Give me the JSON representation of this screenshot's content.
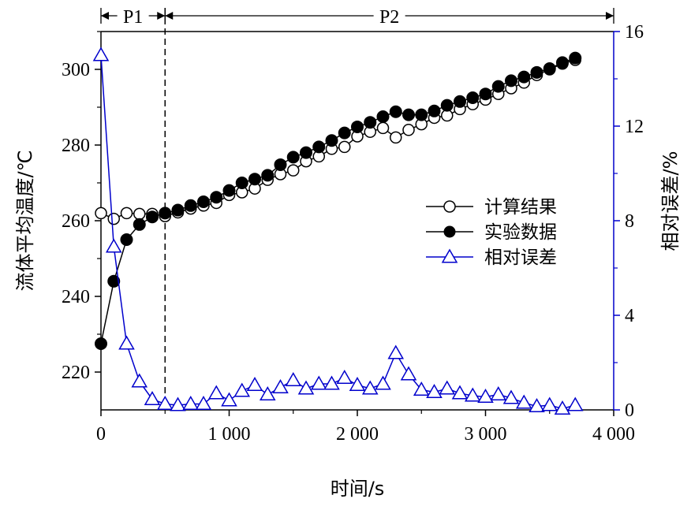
{
  "chart_data": {
    "type": "line",
    "xlabel": "时间/s",
    "ylabel_left": "流体平均温度/℃",
    "ylabel_right": "相对误差/%",
    "xlim": [
      0,
      4000
    ],
    "ylim_left": [
      210,
      310
    ],
    "ylim_right": [
      0,
      16
    ],
    "x_ticks": [
      0,
      1000,
      2000,
      3000,
      4000
    ],
    "x_tick_labels": [
      "0",
      "1 000",
      "2 000",
      "3 000",
      "4 000"
    ],
    "y_left_ticks": [
      220,
      240,
      260,
      280,
      300
    ],
    "y_left_tick_labels": [
      "220",
      "240",
      "260",
      "280",
      "300"
    ],
    "y_right_ticks": [
      0,
      4,
      8,
      12,
      16
    ],
    "y_right_tick_labels": [
      "0",
      "4",
      "8",
      "12",
      "16"
    ],
    "right_axis_color": "#0000cc",
    "legend_position": "right-center",
    "phases": [
      {
        "label": "P1",
        "x_start": 0,
        "x_end": 500
      },
      {
        "label": "P2",
        "x_start": 500,
        "x_end": 4000
      }
    ],
    "divider_x": 500,
    "series": [
      {
        "name": "计算结果",
        "axis": "left",
        "marker": "open-circle",
        "color": "#000000",
        "x": [
          0,
          100,
          200,
          300,
          400,
          500,
          600,
          700,
          800,
          900,
          1000,
          1100,
          1200,
          1300,
          1400,
          1500,
          1600,
          1700,
          1800,
          1900,
          2000,
          2100,
          2200,
          2300,
          2400,
          2500,
          2600,
          2700,
          2800,
          2900,
          3000,
          3100,
          3200,
          3300,
          3400,
          3500,
          3600,
          3700
        ],
        "values": [
          262.0,
          260.5,
          262.0,
          261.8,
          261.8,
          261.2,
          262.2,
          263.2,
          264.0,
          264.7,
          266.8,
          267.5,
          268.5,
          270.8,
          272.3,
          273.3,
          275.7,
          277.0,
          279.0,
          279.5,
          282.3,
          283.5,
          284.5,
          282.0,
          284.0,
          285.5,
          287.2,
          287.8,
          289.5,
          290.8,
          292.0,
          293.5,
          295.0,
          296.5,
          298.5,
          300.0,
          301.5,
          302.5
        ]
      },
      {
        "name": "实验数据",
        "axis": "left",
        "marker": "filled-circle",
        "color": "#000000",
        "x": [
          0,
          100,
          200,
          300,
          400,
          500,
          600,
          700,
          800,
          900,
          1000,
          1100,
          1200,
          1300,
          1400,
          1500,
          1600,
          1700,
          1800,
          1900,
          2000,
          2100,
          2200,
          2300,
          2400,
          2500,
          2600,
          2700,
          2800,
          2900,
          3000,
          3100,
          3200,
          3300,
          3400,
          3500,
          3600,
          3700
        ],
        "values": [
          227.5,
          244.0,
          255.0,
          259.0,
          261.0,
          262.0,
          262.8,
          264.0,
          265.0,
          266.2,
          268.0,
          270.0,
          271.0,
          272.0,
          274.8,
          276.8,
          278.0,
          279.5,
          281.2,
          283.2,
          284.8,
          286.0,
          287.5,
          288.8,
          288.0,
          288.0,
          289.0,
          290.5,
          291.5,
          292.5,
          293.5,
          295.5,
          297.0,
          298.0,
          299.2,
          300.2,
          301.8,
          303.0
        ]
      },
      {
        "name": "相对误差",
        "axis": "right",
        "marker": "open-triangle",
        "color": "#0000cc",
        "x": [
          0,
          100,
          200,
          300,
          400,
          500,
          600,
          700,
          800,
          900,
          1000,
          1100,
          1200,
          1300,
          1400,
          1500,
          1600,
          1700,
          1800,
          1900,
          2000,
          2100,
          2200,
          2300,
          2400,
          2500,
          2600,
          2700,
          2800,
          2900,
          3000,
          3100,
          3200,
          3300,
          3400,
          3500,
          3600,
          3700
        ],
        "values": [
          15.0,
          6.9,
          2.8,
          1.2,
          0.45,
          0.25,
          0.2,
          0.25,
          0.25,
          0.7,
          0.4,
          0.8,
          1.05,
          0.65,
          0.95,
          1.25,
          0.9,
          1.1,
          1.1,
          1.35,
          1.05,
          0.9,
          1.1,
          2.4,
          1.5,
          0.85,
          0.75,
          0.9,
          0.7,
          0.6,
          0.55,
          0.65,
          0.5,
          0.3,
          0.15,
          0.2,
          0.05,
          0.2
        ]
      }
    ]
  }
}
